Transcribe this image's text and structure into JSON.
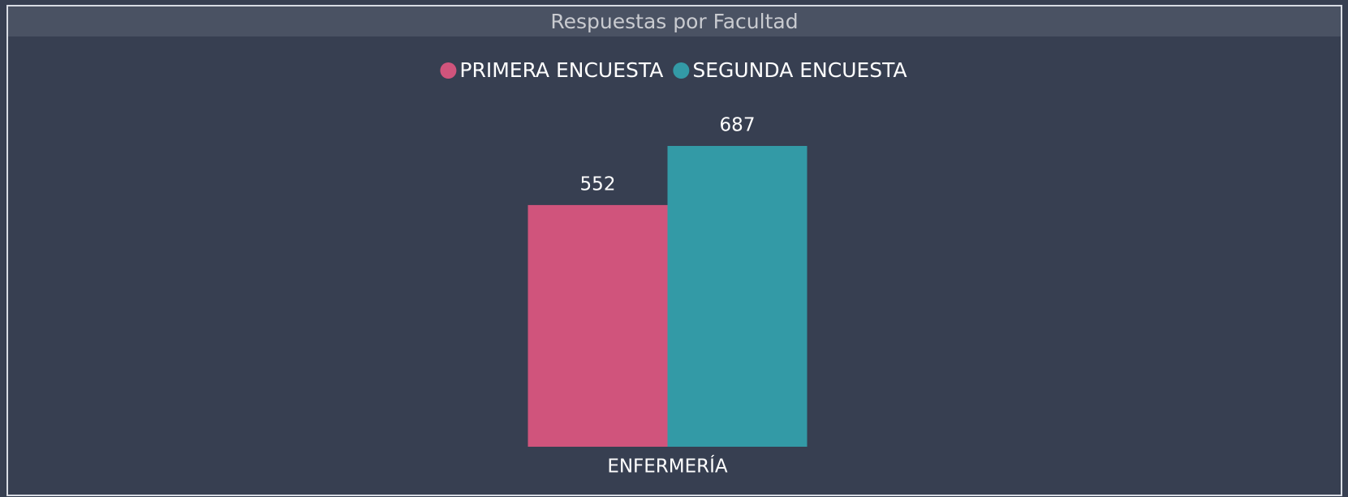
{
  "chart_data": {
    "type": "bar",
    "title": "Respuestas por Facultad",
    "categories": [
      "ENFERMERÍA"
    ],
    "series": [
      {
        "name": "PRIMERA ENCUESTA",
        "color": "#d0547c",
        "values": [
          552
        ]
      },
      {
        "name": "SEGUNDA ENCUESTA",
        "color": "#339aa6",
        "values": [
          687
        ]
      }
    ]
  }
}
